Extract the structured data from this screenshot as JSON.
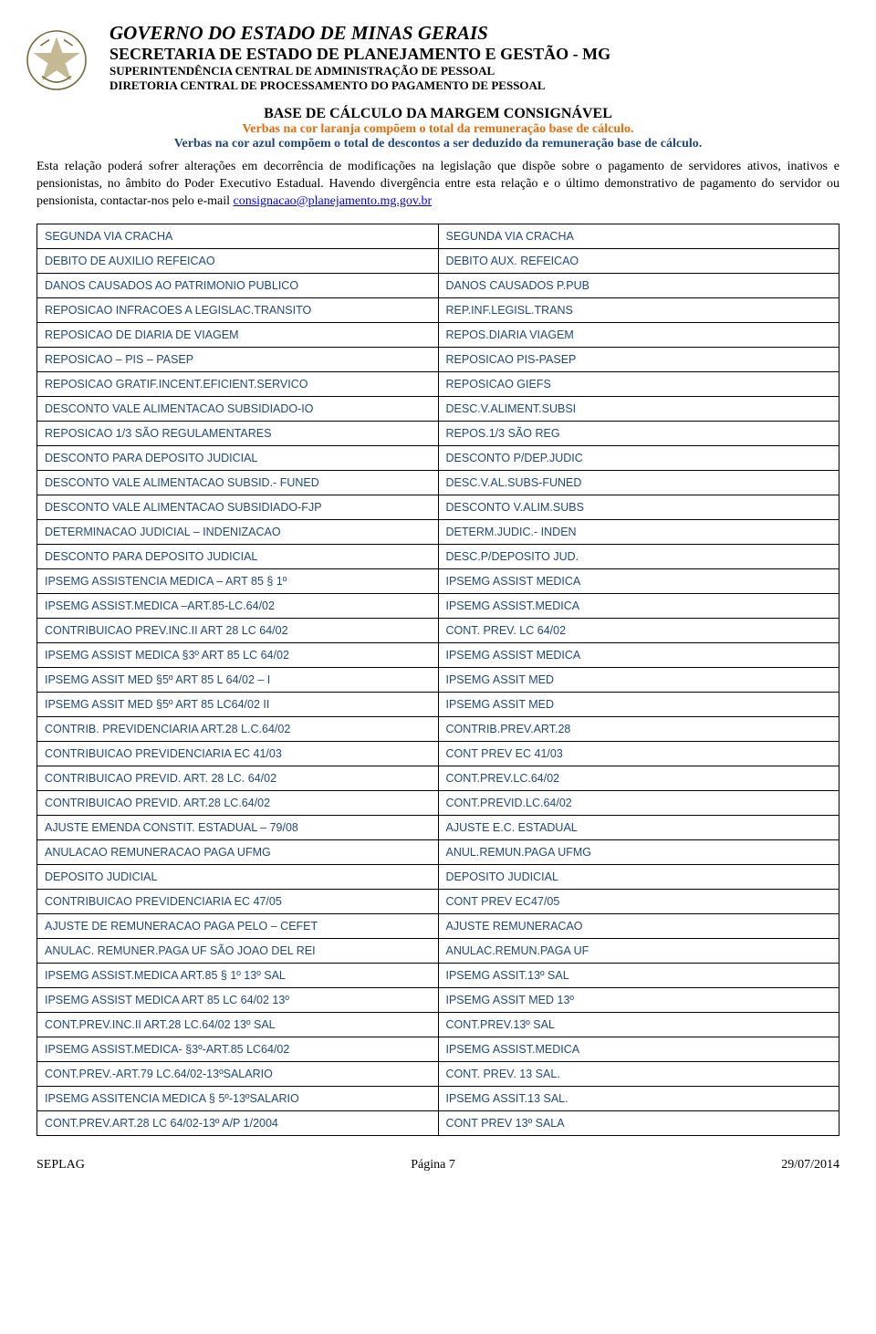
{
  "header": {
    "line1": "GOVERNO DO ESTADO DE MINAS GERAIS",
    "line2": "SECRETARIA DE ESTADO DE PLANEJAMENTO E GESTÃO - MG",
    "line3": "SUPERINTENDÊNCIA CENTRAL DE ADMINISTRAÇÃO DE PESSOAL",
    "line4": "DIRETORIA CENTRAL DE PROCESSAMENTO DO PAGAMENTO DE PESSOAL"
  },
  "title": {
    "main": "BASE DE CÁLCULO DA MARGEM CONSIGNÁVEL",
    "orange": "Verbas na cor laranja compõem o total da remuneração base de cálculo.",
    "blue": "Verbas na cor azul compõem o total de descontos a ser deduzido da remuneração base de cálculo."
  },
  "intro": {
    "text_before": "Esta relação poderá sofrer alterações em decorrência de modificações na legislação que dispõe sobre o pagamento de servidores ativos, inativos e pensionistas, no âmbito do Poder Executivo Estadual. Havendo divergência entre esta relação e o último demonstrativo de pagamento do servidor ou pensionista, contactar-nos pelo e-mail ",
    "email": "consignacao@planejamento.mg.gov.br"
  },
  "colors": {
    "orange": "#e36c0a",
    "blue": "#1f497d",
    "link": "#0000ee",
    "text": "#000000",
    "border": "#000000",
    "background": "#ffffff"
  },
  "table": {
    "rows": [
      [
        "SEGUNDA VIA CRACHA",
        "SEGUNDA VIA CRACHA"
      ],
      [
        "DEBITO DE AUXILIO REFEICAO",
        "DEBITO AUX. REFEICAO"
      ],
      [
        "DANOS CAUSADOS AO PATRIMONIO PUBLICO",
        "DANOS CAUSADOS P.PUB"
      ],
      [
        "REPOSICAO INFRACOES A LEGISLAC.TRANSITO",
        "REP.INF.LEGISL.TRANS"
      ],
      [
        "REPOSICAO DE DIARIA DE VIAGEM",
        "REPOS.DIARIA VIAGEM"
      ],
      [
        "REPOSICAO – PIS – PASEP",
        "REPOSICAO PIS-PASEP"
      ],
      [
        "REPOSICAO GRATIF.INCENT.EFICIENT.SERVICO",
        "REPOSICAO GIEFS"
      ],
      [
        "DESCONTO VALE ALIMENTACAO SUBSIDIADO-IO",
        "DESC.V.ALIMENT.SUBSI"
      ],
      [
        "REPOSICAO 1/3 SÃO REGULAMENTARES",
        "REPOS.1/3 SÃO REG"
      ],
      [
        "DESCONTO PARA DEPOSITO JUDICIAL",
        "DESCONTO P/DEP.JUDIC"
      ],
      [
        "DESCONTO VALE ALIMENTACAO SUBSID.- FUNED",
        "DESC.V.AL.SUBS-FUNED"
      ],
      [
        "DESCONTO VALE ALIMENTACAO SUBSIDIADO-FJP",
        "DESCONTO V.ALIM.SUBS"
      ],
      [
        "DETERMINACAO JUDICIAL – INDENIZACAO",
        "DETERM.JUDIC.- INDEN"
      ],
      [
        "DESCONTO PARA DEPOSITO JUDICIAL",
        "DESC.P/DEPOSITO JUD."
      ],
      [
        "IPSEMG ASSISTENCIA MEDICA – ART 85 § 1º",
        "IPSEMG ASSIST MEDICA"
      ],
      [
        "IPSEMG ASSIST.MEDICA –ART.85-LC.64/02",
        "IPSEMG ASSIST.MEDICA"
      ],
      [
        "CONTRIBUICAO PREV.INC.II ART 28 LC 64/02",
        "CONT. PREV. LC 64/02"
      ],
      [
        "IPSEMG ASSIST MEDICA §3º ART 85 LC 64/02",
        "IPSEMG ASSIST MEDICA"
      ],
      [
        "IPSEMG ASSIT MED §5º ART 85 L 64/02 – I",
        "IPSEMG ASSIT MED"
      ],
      [
        "IPSEMG ASSIT MED §5º ART 85 LC64/02 II",
        "IPSEMG ASSIT MED"
      ],
      [
        "CONTRIB. PREVIDENCIARIA ART.28 L.C.64/02",
        "CONTRIB.PREV.ART.28"
      ],
      [
        "CONTRIBUICAO PREVIDENCIARIA EC 41/03",
        "CONT PREV EC 41/03"
      ],
      [
        "CONTRIBUICAO PREVID. ART. 28 LC. 64/02",
        "CONT.PREV.LC.64/02"
      ],
      [
        "CONTRIBUICAO PREVID. ART.28 LC.64/02",
        "CONT.PREVID.LC.64/02"
      ],
      [
        "AJUSTE EMENDA CONSTIT. ESTADUAL – 79/08",
        "AJUSTE E.C. ESTADUAL"
      ],
      [
        "ANULACAO REMUNERACAO PAGA UFMG",
        "ANUL.REMUN.PAGA UFMG"
      ],
      [
        "DEPOSITO JUDICIAL",
        "DEPOSITO JUDICIAL"
      ],
      [
        "CONTRIBUICAO PREVIDENCIARIA EC 47/05",
        "CONT PREV EC47/05"
      ],
      [
        "AJUSTE DE REMUNERACAO PAGA PELO – CEFET",
        "AJUSTE REMUNERACAO"
      ],
      [
        "ANULAC. REMUNER.PAGA UF SÃO JOAO DEL REI",
        "ANULAC.REMUN.PAGA UF"
      ],
      [
        "IPSEMG ASSIST.MEDICA ART.85 § 1º 13º SAL",
        "IPSEMG ASSIT.13º SAL"
      ],
      [
        "IPSEMG ASSIST MEDICA ART 85 LC 64/02 13º",
        "IPSEMG ASSIT MED 13º"
      ],
      [
        "CONT.PREV.INC.II ART.28 LC.64/02 13º SAL",
        "CONT.PREV.13º SAL"
      ],
      [
        "IPSEMG ASSIST.MEDICA- §3º-ART.85 LC64/02",
        "IPSEMG ASSIST.MEDICA"
      ],
      [
        "CONT.PREV.-ART.79 LC.64/02-13ºSALARIO",
        "CONT. PREV. 13 SAL."
      ],
      [
        "IPSEMG ASSITENCIA MEDICA § 5º-13ºSALARIO",
        "IPSEMG ASSIT.13 SAL."
      ],
      [
        "CONT.PREV.ART.28 LC 64/02-13º A/P 1/2004",
        "CONT PREV 13º SALA"
      ]
    ]
  },
  "footer": {
    "left": "SEPLAG",
    "center": "Página 7",
    "right": "29/07/2014"
  }
}
